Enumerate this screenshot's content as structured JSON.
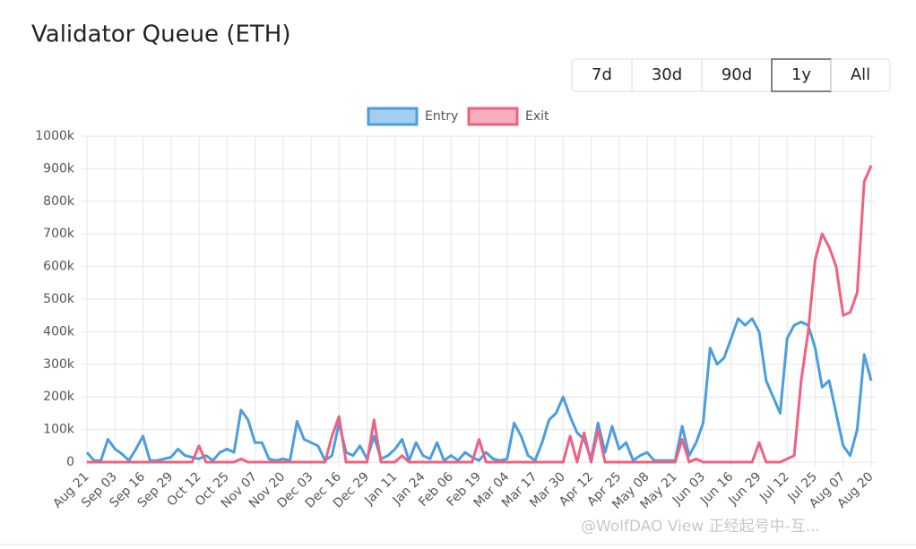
{
  "ui": {
    "buttons": [
      "7d",
      "30d",
      "90d",
      "1y",
      "All"
    ],
    "active": "1y"
  },
  "watermark": "@WolfDAO View 正经起号中-互...",
  "chart_data": {
    "type": "line",
    "title": "Validator Queue (ETH)",
    "categories": [
      "Aug 21",
      null,
      null,
      null,
      "Sep 03",
      null,
      null,
      null,
      "Sep 16",
      null,
      null,
      null,
      "Sep 29",
      null,
      null,
      null,
      "Oct 12",
      null,
      null,
      null,
      "Oct 25",
      null,
      null,
      null,
      "Nov 07",
      null,
      null,
      null,
      "Nov 20",
      null,
      null,
      null,
      "Dec 03",
      null,
      null,
      null,
      "Dec 16",
      null,
      null,
      null,
      "Dec 29",
      null,
      null,
      null,
      "Jan 11",
      null,
      null,
      null,
      "Jan 24",
      null,
      null,
      null,
      "Feb 06",
      null,
      null,
      null,
      "Feb 19",
      null,
      null,
      null,
      "Mar 04",
      null,
      null,
      null,
      "Mar 17",
      null,
      null,
      null,
      "Mar 30",
      null,
      null,
      null,
      "Apr 12",
      null,
      null,
      null,
      "Apr 25",
      null,
      null,
      null,
      "May 08",
      null,
      null,
      null,
      "May 21",
      null,
      null,
      null,
      "Jun 03",
      null,
      null,
      null,
      "Jun 16",
      null,
      null,
      null,
      "Jun 29",
      null,
      null,
      null,
      "Jul 12",
      null,
      null,
      null,
      "Jul 25",
      null,
      null,
      null,
      "Aug 07",
      null,
      null,
      null,
      "Aug 20"
    ],
    "series": [
      {
        "name": "Entry",
        "color": "#4a9de0",
        "values": [
          30000,
          5000,
          5000,
          70000,
          40000,
          25000,
          5000,
          40000,
          80000,
          5000,
          5000,
          10000,
          15000,
          40000,
          20000,
          15000,
          10000,
          20000,
          5000,
          30000,
          40000,
          30000,
          160000,
          130000,
          60000,
          60000,
          10000,
          5000,
          10000,
          5000,
          125000,
          70000,
          60000,
          50000,
          5000,
          20000,
          120000,
          30000,
          20000,
          50000,
          10000,
          80000,
          10000,
          20000,
          40000,
          70000,
          5000,
          60000,
          20000,
          10000,
          60000,
          5000,
          20000,
          5000,
          30000,
          15000,
          5000,
          30000,
          10000,
          5000,
          10000,
          120000,
          80000,
          20000,
          5000,
          60000,
          130000,
          150000,
          200000,
          140000,
          90000,
          70000,
          10000,
          120000,
          30000,
          110000,
          40000,
          60000,
          5000,
          20000,
          30000,
          5000,
          5000,
          5000,
          5000,
          110000,
          20000,
          60000,
          120000,
          350000,
          300000,
          320000,
          380000,
          440000,
          420000,
          440000,
          400000,
          250000,
          200000,
          150000,
          380000,
          420000,
          430000,
          420000,
          350000,
          230000,
          250000,
          150000,
          50000,
          20000,
          100000,
          330000,
          250000
        ]
      },
      {
        "name": "Exit",
        "color": "#f0607f",
        "values": [
          0,
          0,
          0,
          0,
          0,
          0,
          0,
          0,
          0,
          0,
          0,
          0,
          0,
          0,
          0,
          0,
          50000,
          0,
          0,
          0,
          0,
          0,
          10000,
          0,
          0,
          0,
          0,
          0,
          0,
          0,
          0,
          0,
          0,
          0,
          0,
          80000,
          140000,
          0,
          0,
          0,
          0,
          130000,
          0,
          0,
          0,
          20000,
          0,
          0,
          0,
          0,
          0,
          0,
          0,
          0,
          0,
          0,
          70000,
          0,
          0,
          0,
          0,
          0,
          0,
          0,
          0,
          0,
          0,
          0,
          0,
          80000,
          0,
          90000,
          0,
          100000,
          0,
          0,
          0,
          0,
          0,
          0,
          0,
          0,
          0,
          0,
          0,
          70000,
          0,
          10000,
          0,
          0,
          0,
          0,
          0,
          0,
          0,
          0,
          60000,
          0,
          0,
          0,
          10000,
          20000,
          250000,
          400000,
          620000,
          700000,
          660000,
          600000,
          450000,
          460000,
          520000,
          860000,
          910000
        ]
      }
    ],
    "ylim": [
      0,
      1000000
    ],
    "yticks": [
      0,
      {
        "value": 100000,
        "label": "100k"
      },
      {
        "value": 200000,
        "label": "200k"
      },
      {
        "value": 300000,
        "label": "300k"
      },
      {
        "value": 400000,
        "label": "400k"
      },
      {
        "value": 500000,
        "label": "500k"
      },
      {
        "value": 600000,
        "label": "600k"
      },
      {
        "value": 700000,
        "label": "700k"
      },
      {
        "value": 800000,
        "label": "800k"
      },
      {
        "value": 900000,
        "label": "900k"
      },
      {
        "value": 1000000,
        "label": "1000k"
      }
    ],
    "grid": true,
    "legend": "top"
  }
}
